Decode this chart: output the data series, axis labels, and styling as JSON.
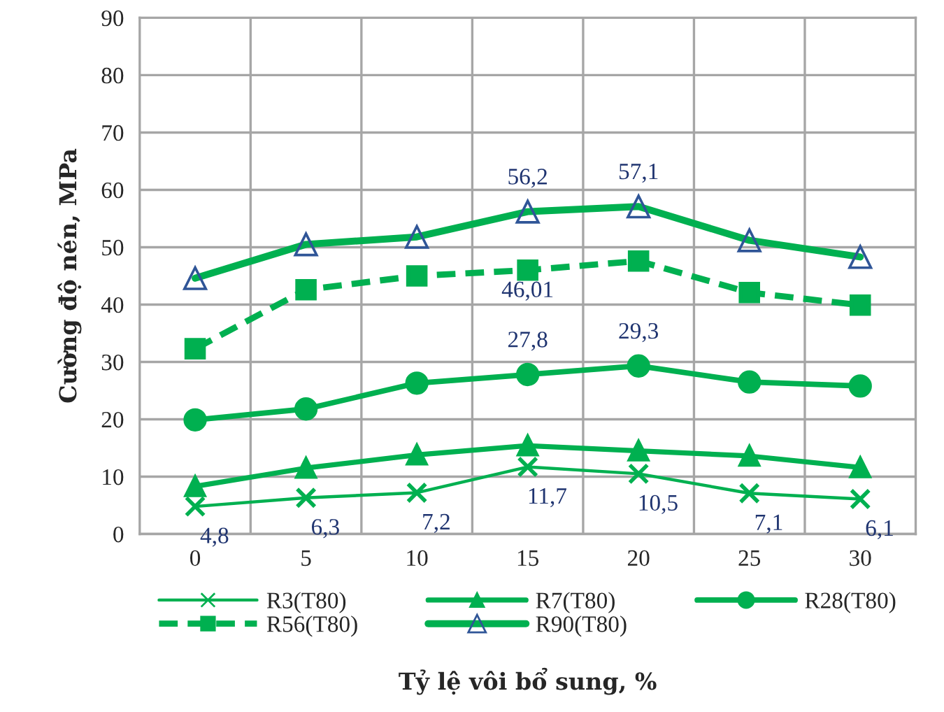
{
  "chart_data": {
    "type": "line",
    "xlabel": "Tỷ lệ vôi bổ sung, %",
    "ylabel": "Cường độ nén, MPa",
    "categories": [
      "0",
      "5",
      "10",
      "15",
      "20",
      "25",
      "30"
    ],
    "series": [
      {
        "name": "R3(T80)",
        "color": "#00b050",
        "marker": "cross",
        "line_style": "solid",
        "values": [
          4.8,
          6.3,
          7.2,
          11.7,
          10.5,
          7.1,
          6.1
        ],
        "value_labels": [
          "4,8",
          "6,3",
          "7,2",
          "11,7",
          "10,5",
          "7,1",
          "6,1"
        ]
      },
      {
        "name": "R7(T80)",
        "color": "#00b050",
        "marker": "triangle",
        "line_style": "solid",
        "values": [
          8.3,
          11.5,
          13.8,
          15.4,
          14.5,
          13.6,
          11.6
        ]
      },
      {
        "name": "R28(T80)",
        "color": "#00b050",
        "marker": "circle",
        "line_style": "solid",
        "values": [
          19.9,
          21.8,
          26.3,
          27.8,
          29.3,
          26.5,
          25.8
        ],
        "value_labels": [
          null,
          null,
          null,
          "27,8",
          "29,3",
          null,
          null
        ]
      },
      {
        "name": "R56(T80)",
        "color": "#00b050",
        "marker": "square",
        "line_style": "dashed",
        "values": [
          32.3,
          42.6,
          45.0,
          46.01,
          47.6,
          42.1,
          39.9
        ],
        "value_labels": [
          null,
          null,
          null,
          "46,01",
          null,
          null,
          null
        ]
      },
      {
        "name": "R90(T80)",
        "color": "#00b050",
        "marker": "triangle",
        "line_style": "solid",
        "values": [
          44.6,
          50.5,
          51.8,
          56.2,
          57.1,
          51.2,
          48.3
        ],
        "value_labels": [
          null,
          null,
          null,
          "56,2",
          "57,1",
          null,
          null
        ]
      }
    ],
    "ylim": [
      0,
      90
    ],
    "yticks": [
      0,
      10,
      20,
      30,
      40,
      50,
      60,
      70,
      80,
      90
    ],
    "grid": true,
    "legend": "bottom"
  }
}
